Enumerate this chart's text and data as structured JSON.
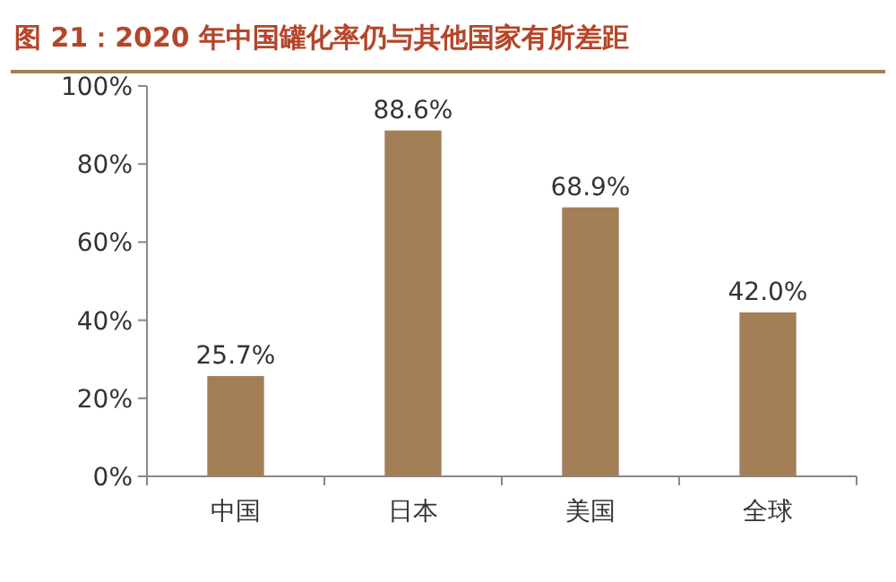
{
  "chart_data": {
    "type": "bar",
    "title": "图 21：2020 年中国罐化率仍与其他国家有所差距",
    "categories": [
      "中国",
      "日本",
      "美国",
      "全球"
    ],
    "values": [
      25.7,
      88.6,
      68.9,
      42.0
    ],
    "value_labels": [
      "25.7%",
      "88.6%",
      "68.9%",
      "42.0%"
    ],
    "color": "#a27f57",
    "ylim": [
      0,
      100
    ],
    "yticks": [
      {
        "value": 0,
        "label": "0%"
      },
      {
        "value": 20,
        "label": "20%"
      },
      {
        "value": 40,
        "label": "40%"
      },
      {
        "value": 60,
        "label": "60%"
      },
      {
        "value": 80,
        "label": "80%"
      },
      {
        "value": 100,
        "label": "100%"
      }
    ],
    "grid": false
  }
}
